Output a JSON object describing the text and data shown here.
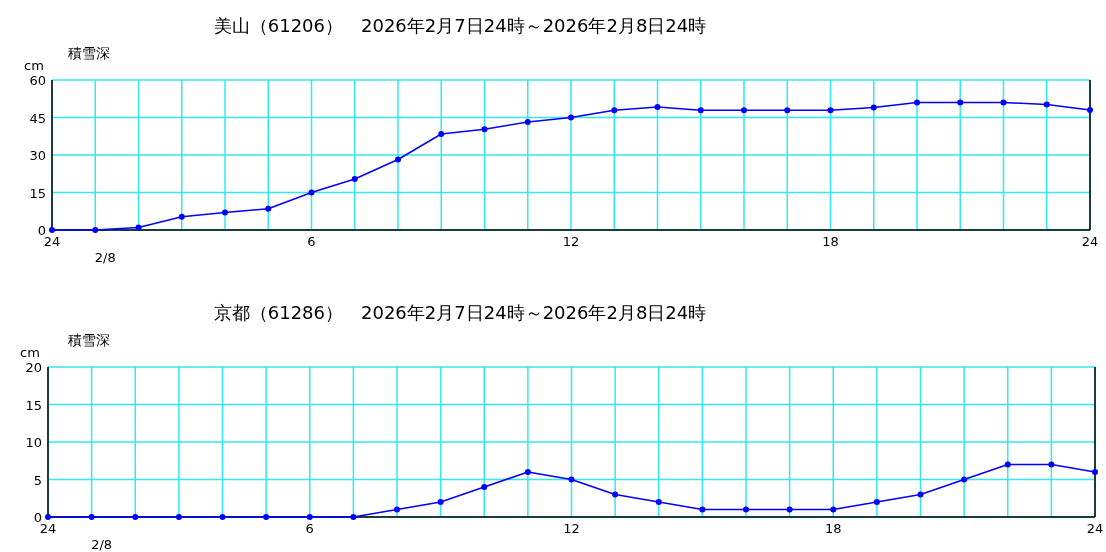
{
  "chart_data": [
    {
      "type": "line",
      "title": "美山（61206）　2026年2月7日24時～2026年2月8日24時",
      "ylabel": "積雪深",
      "annotations": [
        "cm",
        "2/8"
      ],
      "x": [
        "2026-02-08T00:00",
        "2026-02-08T01:00",
        "2026-02-08T02:00",
        "2026-02-08T03:00",
        "2026-02-08T04:00",
        "2026-02-08T05:00",
        "2026-02-08T06:00",
        "2026-02-08T07:00",
        "2026-02-08T08:00",
        "2026-02-08T09:00",
        "2026-02-08T10:00",
        "2026-02-08T11:00",
        "2026-02-08T12:00",
        "2026-02-08T13:00",
        "2026-02-08T14:00",
        "2026-02-08T15:00",
        "2026-02-08T16:00",
        "2026-02-08T17:00",
        "2026-02-08T18:00",
        "2026-02-08T19:00",
        "2026-02-08T20:00",
        "2026-02-08T21:00",
        "2026-02-08T22:00",
        "2026-02-08T23:00",
        "2026-02-09T00:00"
      ],
      "series": [
        {
          "color": "#0000ff",
          "values": [
            0,
            0,
            1,
            5.3,
            7,
            8.5,
            15,
            20.4,
            28.2,
            38.4,
            40.3,
            43.2,
            45,
            47.9,
            49.2,
            47.9,
            47.9,
            47.9,
            47.9,
            49,
            51,
            51,
            51,
            50.2,
            48
          ]
        }
      ],
      "xlim": [
        "2026-02-08T00:00",
        "2026-02-09T00:00"
      ],
      "xticks": [
        {
          "value": "2026-02-08T00:00",
          "label": "24"
        },
        {
          "value": "2026-02-08T01:00",
          "label": null
        },
        {
          "value": "2026-02-08T02:00",
          "label": null
        },
        {
          "value": "2026-02-08T03:00",
          "label": null
        },
        {
          "value": "2026-02-08T04:00",
          "label": null
        },
        {
          "value": "2026-02-08T05:00",
          "label": null
        },
        {
          "value": "2026-02-08T06:00",
          "label": "6"
        },
        {
          "value": "2026-02-08T07:00",
          "label": null
        },
        {
          "value": "2026-02-08T08:00",
          "label": null
        },
        {
          "value": "2026-02-08T09:00",
          "label": null
        },
        {
          "value": "2026-02-08T10:00",
          "label": null
        },
        {
          "value": "2026-02-08T11:00",
          "label": null
        },
        {
          "value": "2026-02-08T12:00",
          "label": "12"
        },
        {
          "value": "2026-02-08T13:00",
          "label": null
        },
        {
          "value": "2026-02-08T14:00",
          "label": null
        },
        {
          "value": "2026-02-08T15:00",
          "label": null
        },
        {
          "value": "2026-02-08T16:00",
          "label": null
        },
        {
          "value": "2026-02-08T17:00",
          "label": null
        },
        {
          "value": "2026-02-08T18:00",
          "label": "18"
        },
        {
          "value": "2026-02-08T19:00",
          "label": null
        },
        {
          "value": "2026-02-08T20:00",
          "label": null
        },
        {
          "value": "2026-02-08T21:00",
          "label": null
        },
        {
          "value": "2026-02-08T22:00",
          "label": null
        },
        {
          "value": "2026-02-08T23:00",
          "label": null
        },
        {
          "value": "2026-02-09T00:00",
          "label": "24"
        }
      ],
      "ylim": [
        0,
        60
      ],
      "yticks": [
        0,
        15,
        30,
        45,
        60
      ],
      "grid": true,
      "marker": "circle",
      "line_style": "solid"
    },
    {
      "type": "line",
      "title": "京都（61286）　2026年2月7日24時～2026年2月8日24時",
      "ylabel": "積雪深",
      "annotations": [
        "cm",
        "2/8"
      ],
      "x": [
        "2026-02-08T00:00",
        "2026-02-08T01:00",
        "2026-02-08T02:00",
        "2026-02-08T03:00",
        "2026-02-08T04:00",
        "2026-02-08T05:00",
        "2026-02-08T06:00",
        "2026-02-08T07:00",
        "2026-02-08T08:00",
        "2026-02-08T09:00",
        "2026-02-08T10:00",
        "2026-02-08T11:00",
        "2026-02-08T12:00",
        "2026-02-08T13:00",
        "2026-02-08T14:00",
        "2026-02-08T15:00",
        "2026-02-08T16:00",
        "2026-02-08T17:00",
        "2026-02-08T18:00",
        "2026-02-08T19:00",
        "2026-02-08T20:00",
        "2026-02-08T21:00",
        "2026-02-08T22:00",
        "2026-02-08T23:00",
        "2026-02-09T00:00"
      ],
      "series": [
        {
          "color": "#0000ff",
          "values": [
            0,
            0,
            0,
            0,
            0,
            0,
            0,
            0,
            1,
            2,
            4,
            6,
            5,
            3,
            2,
            1,
            1,
            1,
            1,
            2,
            3,
            5,
            7,
            7,
            6
          ]
        }
      ],
      "xlim": [
        "2026-02-08T00:00",
        "2026-02-09T00:00"
      ],
      "xticks": [
        {
          "value": "2026-02-08T00:00",
          "label": "24"
        },
        {
          "value": "2026-02-08T01:00",
          "label": null
        },
        {
          "value": "2026-02-08T02:00",
          "label": null
        },
        {
          "value": "2026-02-08T03:00",
          "label": null
        },
        {
          "value": "2026-02-08T04:00",
          "label": null
        },
        {
          "value": "2026-02-08T05:00",
          "label": null
        },
        {
          "value": "2026-02-08T06:00",
          "label": "6"
        },
        {
          "value": "2026-02-08T07:00",
          "label": null
        },
        {
          "value": "2026-02-08T08:00",
          "label": null
        },
        {
          "value": "2026-02-08T09:00",
          "label": null
        },
        {
          "value": "2026-02-08T10:00",
          "label": null
        },
        {
          "value": "2026-02-08T11:00",
          "label": null
        },
        {
          "value": "2026-02-08T12:00",
          "label": "12"
        },
        {
          "value": "2026-02-08T13:00",
          "label": null
        },
        {
          "value": "2026-02-08T14:00",
          "label": null
        },
        {
          "value": "2026-02-08T15:00",
          "label": null
        },
        {
          "value": "2026-02-08T16:00",
          "label": null
        },
        {
          "value": "2026-02-08T17:00",
          "label": null
        },
        {
          "value": "2026-02-08T18:00",
          "label": "18"
        },
        {
          "value": "2026-02-08T19:00",
          "label": null
        },
        {
          "value": "2026-02-08T20:00",
          "label": null
        },
        {
          "value": "2026-02-08T21:00",
          "label": null
        },
        {
          "value": "2026-02-08T22:00",
          "label": null
        },
        {
          "value": "2026-02-08T23:00",
          "label": null
        },
        {
          "value": "2026-02-09T00:00",
          "label": "24"
        }
      ],
      "ylim": [
        0,
        20
      ],
      "yticks": [
        0,
        5,
        10,
        15,
        20
      ],
      "grid": true,
      "marker": "circle",
      "line_style": "solid"
    }
  ]
}
